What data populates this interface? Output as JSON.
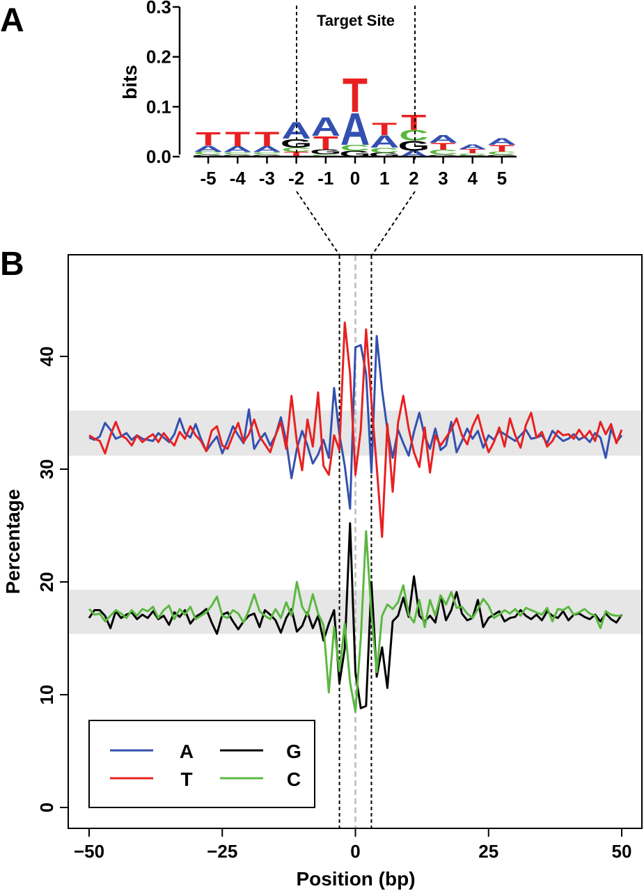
{
  "figure": {
    "panel_a_label": "A",
    "panel_b_label": "B"
  },
  "colors": {
    "A": "#3350b0",
    "T": "#e82020",
    "G": "#000000",
    "C": "#5ab840",
    "band": "#e6e6e6",
    "center_line": "#bbbbbb"
  },
  "chart_data": [
    {
      "type": "sequence-logo",
      "title": "",
      "annotation": "Target Site",
      "ylabel": "bits",
      "xlabel": "",
      "ylim": [
        0,
        0.3
      ],
      "yticks": [
        "0.0",
        "0.1",
        "0.2",
        "0.3"
      ],
      "positions": [
        "-5",
        "-4",
        "-3",
        "-2",
        "-1",
        "0",
        "1",
        "2",
        "3",
        "4",
        "5"
      ],
      "target_site": [
        "-2",
        "2"
      ],
      "columns": [
        {
          "position": "-5",
          "letters": [
            {
              "base": "G",
              "bits": 0.004
            },
            {
              "base": "C",
              "bits": 0.006
            },
            {
              "base": "A",
              "bits": 0.012
            },
            {
              "base": "T",
              "bits": 0.028
            }
          ]
        },
        {
          "position": "-4",
          "letters": [
            {
              "base": "G",
              "bits": 0.004
            },
            {
              "base": "C",
              "bits": 0.005
            },
            {
              "base": "A",
              "bits": 0.012
            },
            {
              "base": "T",
              "bits": 0.03
            }
          ]
        },
        {
          "position": "-3",
          "letters": [
            {
              "base": "G",
              "bits": 0.004
            },
            {
              "base": "C",
              "bits": 0.005
            },
            {
              "base": "A",
              "bits": 0.012
            },
            {
              "base": "T",
              "bits": 0.03
            }
          ]
        },
        {
          "position": "-2",
          "letters": [
            {
              "base": "T",
              "bits": 0.01
            },
            {
              "base": "C",
              "bits": 0.008
            },
            {
              "base": "G",
              "bits": 0.018
            },
            {
              "base": "A",
              "bits": 0.034
            }
          ]
        },
        {
          "position": "-1",
          "letters": [
            {
              "base": "C",
              "bits": 0.005
            },
            {
              "base": "G",
              "bits": 0.01
            },
            {
              "base": "T",
              "bits": 0.027
            },
            {
              "base": "A",
              "bits": 0.038
            }
          ]
        },
        {
          "position": "0",
          "letters": [
            {
              "base": "G",
              "bits": 0.012
            },
            {
              "base": "C",
              "bits": 0.012
            },
            {
              "base": "A",
              "bits": 0.066
            },
            {
              "base": "T",
              "bits": 0.07
            }
          ]
        },
        {
          "position": "1",
          "letters": [
            {
              "base": "G",
              "bits": 0.008
            },
            {
              "base": "C",
              "bits": 0.01
            },
            {
              "base": "A",
              "bits": 0.025
            },
            {
              "base": "T",
              "bits": 0.025
            }
          ]
        },
        {
          "position": "2",
          "letters": [
            {
              "base": "A",
              "bits": 0.012
            },
            {
              "base": "G",
              "bits": 0.02
            },
            {
              "base": "C",
              "bits": 0.022
            },
            {
              "base": "T",
              "bits": 0.032
            }
          ]
        },
        {
          "position": "3",
          "letters": [
            {
              "base": "G",
              "bits": 0.004
            },
            {
              "base": "C",
              "bits": 0.01
            },
            {
              "base": "T",
              "bits": 0.014
            },
            {
              "base": "A",
              "bits": 0.016
            }
          ]
        },
        {
          "position": "4",
          "letters": [
            {
              "base": "G",
              "bits": 0.003
            },
            {
              "base": "C",
              "bits": 0.004
            },
            {
              "base": "T",
              "bits": 0.008
            },
            {
              "base": "A",
              "bits": 0.01
            }
          ]
        },
        {
          "position": "5",
          "letters": [
            {
              "base": "G",
              "bits": 0.004
            },
            {
              "base": "C",
              "bits": 0.006
            },
            {
              "base": "T",
              "bits": 0.014
            },
            {
              "base": "A",
              "bits": 0.014
            }
          ]
        }
      ]
    },
    {
      "type": "line",
      "title": "",
      "xlabel": "Position (bp)",
      "ylabel": "Percentage",
      "xlim": [
        -50,
        50
      ],
      "ylim": [
        0,
        45
      ],
      "xticks": [
        -50,
        -25,
        0,
        25,
        50
      ],
      "xtick_labels": [
        "−50",
        "−25",
        "0",
        "25",
        "50"
      ],
      "yticks": [
        0,
        10,
        20,
        30,
        40
      ],
      "ytick_labels": [
        "0",
        "10",
        "20",
        "30",
        "40"
      ],
      "bands": [
        [
          31.2,
          35.2
        ],
        [
          15.4,
          19.3
        ]
      ],
      "vlines": {
        "dashed": [
          -3,
          3
        ],
        "center": 0
      },
      "legend_position": "bottom-left",
      "x": [
        -50,
        -49,
        -48,
        -47,
        -46,
        -45,
        -44,
        -43,
        -42,
        -41,
        -40,
        -39,
        -38,
        -37,
        -36,
        -35,
        -34,
        -33,
        -32,
        -31,
        -30,
        -29,
        -28,
        -27,
        -26,
        -25,
        -24,
        -23,
        -22,
        -21,
        -20,
        -19,
        -18,
        -17,
        -16,
        -15,
        -14,
        -13,
        -12,
        -11,
        -10,
        -9,
        -8,
        -7,
        -6,
        -5,
        -4,
        -3,
        -2,
        -1,
        0,
        1,
        2,
        3,
        4,
        5,
        6,
        7,
        8,
        9,
        10,
        11,
        12,
        13,
        14,
        15,
        16,
        17,
        18,
        19,
        20,
        21,
        22,
        23,
        24,
        25,
        26,
        27,
        28,
        29,
        30,
        31,
        32,
        33,
        34,
        35,
        36,
        37,
        38,
        39,
        40,
        41,
        42,
        43,
        44,
        45,
        46,
        47,
        48,
        49,
        50
      ],
      "series": [
        {
          "name": "A",
          "values": [
            32.8,
            32.6,
            32.9,
            34.1,
            33.5,
            32.7,
            32.9,
            33.2,
            32.6,
            33.0,
            32.7,
            32.6,
            32.5,
            33.2,
            32.8,
            32.4,
            33.1,
            34.5,
            33.2,
            32.8,
            34.0,
            32.7,
            31.6,
            32.3,
            32.9,
            31.4,
            32.5,
            33.8,
            33.0,
            32.3,
            35.3,
            31.8,
            32.6,
            33.2,
            32.1,
            33.0,
            34.6,
            32.5,
            29.2,
            31.8,
            33.4,
            32.1,
            30.5,
            31.3,
            32.6,
            31.0,
            37.2,
            33.1,
            30.3,
            26.5,
            40.8,
            41.0,
            38.5,
            29.7,
            41.8,
            37.0,
            33.5,
            31.0,
            33.5,
            32.3,
            31.2,
            33.3,
            35.0,
            32.9,
            31.8,
            33.6,
            31.7,
            32.1,
            34.2,
            31.5,
            32.5,
            33.6,
            32.7,
            33.4,
            31.9,
            33.0,
            32.6,
            33.4,
            33.1,
            32.8,
            32.5,
            33.0,
            33.5,
            32.7,
            32.8,
            33.0,
            32.3,
            33.4,
            32.9,
            32.5,
            32.7,
            33.1,
            32.6,
            32.9,
            32.4,
            33.2,
            32.8,
            31.0,
            33.6,
            32.4,
            33.0
          ]
        },
        {
          "name": "T",
          "values": [
            33.0,
            32.7,
            32.5,
            31.4,
            33.0,
            34.2,
            33.0,
            32.7,
            32.1,
            33.0,
            32.4,
            32.8,
            33.1,
            32.4,
            33.2,
            32.6,
            32.1,
            33.3,
            32.7,
            33.8,
            33.0,
            32.5,
            31.6,
            33.4,
            33.8,
            32.1,
            31.8,
            33.0,
            34.1,
            32.4,
            33.1,
            34.4,
            32.9,
            32.2,
            31.5,
            33.0,
            34.2,
            31.8,
            36.5,
            32.4,
            29.9,
            34.4,
            32.0,
            36.8,
            30.3,
            29.5,
            33.0,
            31.7,
            43.0,
            38.5,
            29.5,
            33.5,
            42.4,
            36.0,
            30.2,
            24.0,
            34.0,
            28.0,
            34.1,
            36.5,
            33.6,
            31.5,
            30.2,
            33.7,
            29.7,
            33.0,
            32.1,
            32.8,
            33.5,
            34.5,
            33.0,
            32.2,
            33.8,
            34.8,
            33.0,
            31.5,
            32.4,
            33.7,
            32.0,
            34.5,
            33.0,
            31.9,
            33.9,
            35.0,
            32.8,
            33.3,
            32.0,
            32.5,
            33.4,
            33.0,
            33.1,
            32.7,
            33.5,
            32.8,
            33.4,
            32.5,
            34.2,
            33.1,
            34.0,
            32.3,
            33.5
          ]
        },
        {
          "name": "G",
          "values": [
            16.8,
            17.5,
            17.5,
            17.0,
            15.9,
            17.4,
            16.8,
            17.1,
            17.3,
            16.7,
            17.1,
            16.8,
            17.4,
            16.7,
            17.0,
            16.2,
            17.3,
            16.9,
            17.5,
            16.3,
            16.9,
            17.2,
            17.6,
            16.4,
            15.4,
            17.1,
            17.3,
            16.5,
            15.8,
            16.5,
            17.0,
            17.2,
            16.0,
            17.5,
            17.1,
            16.6,
            15.5,
            16.8,
            17.6,
            15.6,
            16.1,
            17.3,
            15.9,
            17.0,
            14.8,
            16.3,
            17.5,
            11.0,
            14.1,
            25.2,
            12.0,
            8.8,
            9.0,
            20.0,
            11.6,
            14.2,
            10.6,
            16.5,
            17.0,
            18.6,
            16.9,
            20.5,
            17.0,
            16.5,
            17.0,
            16.4,
            18.8,
            16.6,
            17.5,
            19.1,
            17.2,
            16.6,
            16.8,
            18.4,
            16.0,
            16.8,
            17.1,
            17.4,
            16.5,
            16.8,
            16.9,
            17.5,
            17.0,
            16.7,
            17.1,
            16.6,
            17.4,
            17.0,
            16.8,
            17.4,
            16.6,
            17.1,
            17.2,
            16.9,
            16.7,
            17.1,
            16.5,
            17.2,
            16.7,
            16.4,
            17.1
          ]
        },
        {
          "name": "C",
          "values": [
            17.6,
            17.1,
            17.2,
            16.5,
            17.0,
            17.5,
            17.2,
            16.8,
            17.5,
            17.0,
            17.6,
            17.4,
            17.8,
            16.8,
            17.5,
            17.9,
            16.7,
            17.6,
            17.1,
            17.8,
            16.7,
            17.0,
            17.3,
            17.9,
            18.7,
            17.0,
            16.8,
            17.5,
            17.2,
            16.4,
            17.5,
            18.9,
            17.4,
            17.0,
            16.7,
            17.6,
            16.8,
            18.2,
            17.0,
            20.0,
            17.8,
            17.0,
            18.9,
            17.2,
            16.2,
            10.2,
            16.0,
            12.1,
            16.3,
            11.1,
            8.5,
            15.0,
            24.5,
            17.2,
            12.0,
            17.0,
            18.0,
            17.6,
            18.2,
            19.7,
            17.1,
            16.4,
            18.4,
            16.0,
            18.4,
            17.0,
            18.8,
            18.0,
            19.1,
            17.7,
            17.8,
            17.2,
            16.8,
            17.6,
            18.5,
            17.9,
            16.8,
            17.1,
            17.5,
            17.2,
            17.6,
            17.0,
            17.7,
            17.5,
            17.3,
            17.1,
            17.7,
            16.5,
            17.6,
            17.5,
            17.8,
            17.1,
            17.3,
            17.6,
            17.2,
            17.0,
            15.9,
            17.4,
            17.1,
            17.0,
            17.0
          ]
        }
      ]
    }
  ]
}
